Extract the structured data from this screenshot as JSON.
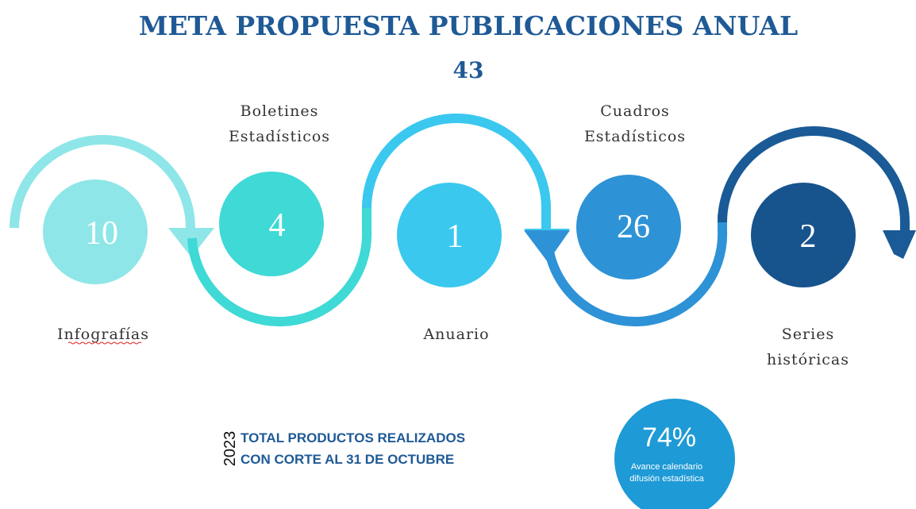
{
  "title": "META PROPUESTA PUBLICACIONES ANUAL",
  "total": 43,
  "items": [
    {
      "value": 10,
      "label": [
        "Infografías"
      ]
    },
    {
      "value": 4,
      "label": [
        "Boletines",
        "Estadísticos"
      ]
    },
    {
      "value": 1,
      "label": [
        "Anuario"
      ]
    },
    {
      "value": 26,
      "label": [
        "Cuadros",
        "Estadísticos"
      ]
    },
    {
      "value": 2,
      "label": [
        "Series",
        "históricas"
      ]
    }
  ],
  "footer": {
    "year": "2023",
    "lines": [
      "TOTAL PRODUCTOS REALIZADOS",
      "CON CORTE AL 31 DE OCTUBRE"
    ],
    "percent": "74%",
    "caption": [
      "Avance calendario",
      "difusión estadística"
    ]
  }
}
